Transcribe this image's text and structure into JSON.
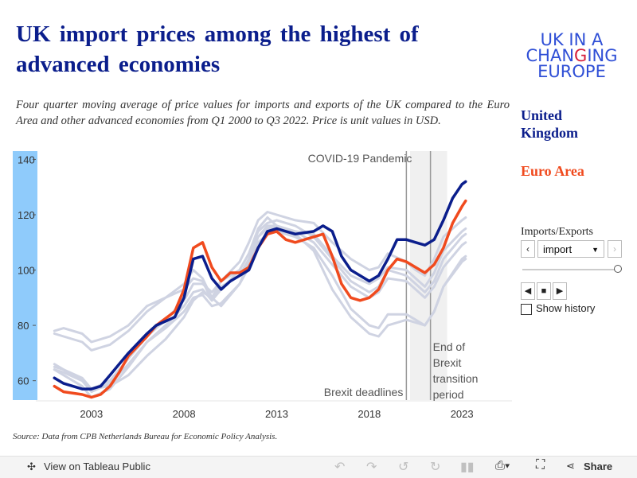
{
  "header": {
    "title": "UK import prices among the highest of advanced economies",
    "subtitle": "Four quarter moving average of price values for imports and exports of the UK compared to the Euro Area and other advanced economies from Q1 2000 to Q3 2022. Price is unit values in USD.",
    "logo": {
      "line1": "UK IN A",
      "line2a": "CHAN",
      "line2b": "G",
      "line2c": "ING",
      "line3": "EUROPE"
    }
  },
  "legend": {
    "uk": "United Kingdom",
    "ea": "Euro  Area"
  },
  "controls": {
    "filter_label": "Imports/Exports",
    "selected": "import",
    "prev_glyph": "‹",
    "next_glyph": "›",
    "show_history": "Show history",
    "playback": {
      "back": "◀",
      "stop": "■",
      "forward": "▶"
    }
  },
  "source": "Source:  Data from CPB Netherlands Bureau for Economic Policy Analysis.",
  "toolbar": {
    "view_label": "View on Tableau Public",
    "share_label": "Share"
  },
  "colors": {
    "uk": "#0b1e8c",
    "ea": "#f04a1e",
    "others": "#cfd3e2",
    "band": "#8fcbfb"
  },
  "chart_data": {
    "type": "line",
    "title": "UK import prices among the highest of advanced economies",
    "xlabel": "",
    "ylabel": "",
    "xlim": [
      2000.0,
      2025.7
    ],
    "ylim": [
      53,
      143
    ],
    "x_ticks": [
      "2003",
      "2008",
      "2013",
      "2018",
      "2023"
    ],
    "y_ticks": [
      "60",
      "80",
      "100",
      "120",
      "140"
    ],
    "grid": false,
    "annotations": {
      "covid": "COVID-19 Pandemic",
      "brexit_deadlines": "Brexit deadlines",
      "transition": [
        "End of",
        "Brexit",
        "transition",
        "period"
      ]
    },
    "events": {
      "covid_band": [
        2020.2,
        2022.2
      ],
      "brexit_line": 2020.0,
      "transition_line": 2021.3
    },
    "series": [
      {
        "name": "United Kingdom",
        "role": "uk",
        "points": [
          [
            2001.0,
            61
          ],
          [
            2001.5,
            59
          ],
          [
            2002.5,
            57
          ],
          [
            2003.0,
            57
          ],
          [
            2003.5,
            58
          ],
          [
            2004.0,
            62
          ],
          [
            2004.5,
            66
          ],
          [
            2005.0,
            70
          ],
          [
            2006.0,
            77
          ],
          [
            2006.5,
            80
          ],
          [
            2007.5,
            83
          ],
          [
            2008.0,
            90
          ],
          [
            2008.5,
            104
          ],
          [
            2009.0,
            105
          ],
          [
            2009.5,
            97
          ],
          [
            2010.0,
            93
          ],
          [
            2010.5,
            96
          ],
          [
            2011.0,
            98
          ],
          [
            2011.5,
            100
          ],
          [
            2012.0,
            108
          ],
          [
            2012.5,
            114
          ],
          [
            2013.0,
            115
          ],
          [
            2013.5,
            114
          ],
          [
            2014.0,
            113
          ],
          [
            2015.0,
            114
          ],
          [
            2015.5,
            116
          ],
          [
            2016.0,
            114
          ],
          [
            2016.5,
            105
          ],
          [
            2017.0,
            100
          ],
          [
            2017.5,
            98
          ],
          [
            2018.0,
            96
          ],
          [
            2018.5,
            98
          ],
          [
            2019.0,
            104
          ],
          [
            2019.5,
            111
          ],
          [
            2020.0,
            111
          ],
          [
            2020.5,
            110
          ],
          [
            2021.0,
            109
          ],
          [
            2021.5,
            111
          ],
          [
            2022.0,
            118
          ],
          [
            2022.5,
            126
          ],
          [
            2023.0,
            131
          ],
          [
            2023.2,
            132
          ]
        ]
      },
      {
        "name": "Euro Area",
        "role": "ea",
        "points": [
          [
            2001.0,
            58
          ],
          [
            2001.5,
            56
          ],
          [
            2002.5,
            55
          ],
          [
            2003.0,
            54
          ],
          [
            2003.5,
            55
          ],
          [
            2004.0,
            58
          ],
          [
            2004.5,
            63
          ],
          [
            2005.0,
            69
          ],
          [
            2006.0,
            76
          ],
          [
            2006.5,
            80
          ],
          [
            2007.5,
            85
          ],
          [
            2008.0,
            93
          ],
          [
            2008.5,
            108
          ],
          [
            2009.0,
            110
          ],
          [
            2009.5,
            101
          ],
          [
            2010.0,
            96
          ],
          [
            2010.5,
            99
          ],
          [
            2011.0,
            99
          ],
          [
            2011.5,
            101
          ],
          [
            2012.0,
            108
          ],
          [
            2012.5,
            113
          ],
          [
            2013.0,
            114
          ],
          [
            2013.5,
            111
          ],
          [
            2014.0,
            110
          ],
          [
            2015.0,
            112
          ],
          [
            2015.5,
            113
          ],
          [
            2016.0,
            105
          ],
          [
            2016.5,
            95
          ],
          [
            2017.0,
            90
          ],
          [
            2017.5,
            89
          ],
          [
            2018.0,
            90
          ],
          [
            2018.5,
            93
          ],
          [
            2019.0,
            100
          ],
          [
            2019.5,
            104
          ],
          [
            2020.0,
            103
          ],
          [
            2020.5,
            101
          ],
          [
            2021.0,
            99
          ],
          [
            2021.5,
            102
          ],
          [
            2022.0,
            108
          ],
          [
            2022.5,
            117
          ],
          [
            2023.0,
            123
          ],
          [
            2023.2,
            125
          ]
        ]
      },
      {
        "role": "other",
        "points": [
          [
            2001.0,
            78
          ],
          [
            2001.5,
            79
          ],
          [
            2002.5,
            77
          ],
          [
            2003.0,
            74
          ],
          [
            2004.0,
            76
          ],
          [
            2005.0,
            80
          ],
          [
            2006.0,
            87
          ],
          [
            2007.0,
            90
          ],
          [
            2008.0,
            95
          ],
          [
            2008.5,
            100
          ],
          [
            2009.0,
            97
          ],
          [
            2009.5,
            90
          ],
          [
            2010.0,
            96
          ],
          [
            2011.0,
            103
          ],
          [
            2011.5,
            110
          ],
          [
            2012.0,
            118
          ],
          [
            2012.5,
            121
          ],
          [
            2013.0,
            120
          ],
          [
            2014.0,
            118
          ],
          [
            2015.0,
            117
          ],
          [
            2016.0,
            110
          ],
          [
            2017.0,
            104
          ],
          [
            2018.0,
            100
          ],
          [
            2018.5,
            101
          ],
          [
            2019.0,
            106
          ],
          [
            2020.0,
            103
          ],
          [
            2020.5,
            100
          ],
          [
            2021.0,
            98
          ],
          [
            2021.5,
            104
          ],
          [
            2022.0,
            112
          ],
          [
            2023.0,
            118
          ],
          [
            2023.2,
            119
          ]
        ]
      },
      {
        "role": "other",
        "points": [
          [
            2001.0,
            77
          ],
          [
            2001.5,
            76
          ],
          [
            2002.5,
            74
          ],
          [
            2003.0,
            71
          ],
          [
            2004.0,
            73
          ],
          [
            2005.0,
            78
          ],
          [
            2006.0,
            85
          ],
          [
            2007.0,
            90
          ],
          [
            2008.0,
            93
          ],
          [
            2008.5,
            97
          ],
          [
            2009.0,
            96
          ],
          [
            2009.5,
            89
          ],
          [
            2010.0,
            93
          ],
          [
            2011.0,
            100
          ],
          [
            2011.5,
            106
          ],
          [
            2012.0,
            115
          ],
          [
            2012.5,
            119
          ],
          [
            2013.0,
            116
          ],
          [
            2014.0,
            114
          ],
          [
            2015.0,
            113
          ],
          [
            2016.0,
            105
          ],
          [
            2017.0,
            98
          ],
          [
            2018.0,
            95
          ],
          [
            2018.5,
            97
          ],
          [
            2019.0,
            101
          ],
          [
            2020.0,
            100
          ],
          [
            2020.5,
            97
          ],
          [
            2021.0,
            94
          ],
          [
            2021.5,
            99
          ],
          [
            2022.0,
            107
          ],
          [
            2023.0,
            114
          ],
          [
            2023.2,
            115
          ]
        ]
      },
      {
        "role": "other",
        "points": [
          [
            2001.0,
            65
          ],
          [
            2001.5,
            64
          ],
          [
            2002.5,
            61
          ],
          [
            2003.0,
            57
          ],
          [
            2004.0,
            60
          ],
          [
            2005.0,
            68
          ],
          [
            2006.0,
            76
          ],
          [
            2007.0,
            82
          ],
          [
            2008.0,
            89
          ],
          [
            2008.5,
            95
          ],
          [
            2009.0,
            95
          ],
          [
            2009.5,
            92
          ],
          [
            2010.0,
            96
          ],
          [
            2011.0,
            100
          ],
          [
            2011.5,
            106
          ],
          [
            2012.0,
            114
          ],
          [
            2012.5,
            117
          ],
          [
            2013.0,
            118
          ],
          [
            2014.0,
            116
          ],
          [
            2015.0,
            112
          ],
          [
            2016.0,
            104
          ],
          [
            2017.0,
            96
          ],
          [
            2018.0,
            92
          ],
          [
            2018.5,
            94
          ],
          [
            2019.0,
            100
          ],
          [
            2020.0,
            98
          ],
          [
            2020.5,
            95
          ],
          [
            2021.0,
            92
          ],
          [
            2021.5,
            96
          ],
          [
            2022.0,
            104
          ],
          [
            2023.0,
            112
          ],
          [
            2023.2,
            113
          ]
        ]
      },
      {
        "role": "other",
        "points": [
          [
            2001.0,
            64
          ],
          [
            2001.5,
            62
          ],
          [
            2002.5,
            58
          ],
          [
            2003.0,
            54
          ],
          [
            2004.0,
            57
          ],
          [
            2005.0,
            65
          ],
          [
            2006.0,
            74
          ],
          [
            2007.0,
            80
          ],
          [
            2008.0,
            87
          ],
          [
            2008.5,
            92
          ],
          [
            2009.0,
            93
          ],
          [
            2009.5,
            89
          ],
          [
            2010.0,
            94
          ],
          [
            2011.0,
            98
          ],
          [
            2011.5,
            104
          ],
          [
            2012.0,
            112
          ],
          [
            2012.5,
            115
          ],
          [
            2013.0,
            116
          ],
          [
            2014.0,
            114
          ],
          [
            2015.0,
            110
          ],
          [
            2016.0,
            102
          ],
          [
            2017.0,
            94
          ],
          [
            2018.0,
            90
          ],
          [
            2018.5,
            92
          ],
          [
            2019.0,
            97
          ],
          [
            2020.0,
            96
          ],
          [
            2020.5,
            93
          ],
          [
            2021.0,
            90
          ],
          [
            2021.5,
            94
          ],
          [
            2022.0,
            101
          ],
          [
            2023.0,
            109
          ],
          [
            2023.2,
            110
          ]
        ]
      },
      {
        "role": "other",
        "points": [
          [
            2001.0,
            66
          ],
          [
            2001.5,
            64
          ],
          [
            2002.5,
            60
          ],
          [
            2003.0,
            56
          ],
          [
            2004.0,
            59
          ],
          [
            2005.0,
            66
          ],
          [
            2006.0,
            74
          ],
          [
            2007.0,
            79
          ],
          [
            2008.0,
            85
          ],
          [
            2008.5,
            90
          ],
          [
            2009.0,
            91
          ],
          [
            2009.5,
            87
          ],
          [
            2010.0,
            88
          ],
          [
            2011.0,
            95
          ],
          [
            2011.5,
            101
          ],
          [
            2012.0,
            110
          ],
          [
            2012.5,
            113
          ],
          [
            2013.0,
            114
          ],
          [
            2014.0,
            112
          ],
          [
            2015.0,
            108
          ],
          [
            2016.0,
            98
          ],
          [
            2017.0,
            86
          ],
          [
            2018.0,
            80
          ],
          [
            2018.5,
            79
          ],
          [
            2019.0,
            84
          ],
          [
            2020.0,
            84
          ],
          [
            2020.5,
            82
          ],
          [
            2021.0,
            80
          ],
          [
            2021.5,
            85
          ],
          [
            2022.0,
            94
          ],
          [
            2023.0,
            103
          ],
          [
            2023.2,
            104
          ]
        ]
      },
      {
        "role": "other",
        "points": [
          [
            2001.0,
            64
          ],
          [
            2001.5,
            63
          ],
          [
            2002.5,
            60
          ],
          [
            2003.0,
            57
          ],
          [
            2004.0,
            58
          ],
          [
            2005.0,
            62
          ],
          [
            2006.0,
            69
          ],
          [
            2007.0,
            75
          ],
          [
            2008.0,
            83
          ],
          [
            2008.5,
            89
          ],
          [
            2009.0,
            92
          ],
          [
            2009.5,
            90
          ],
          [
            2010.0,
            87
          ],
          [
            2011.0,
            95
          ],
          [
            2011.5,
            103
          ],
          [
            2012.0,
            112
          ],
          [
            2012.5,
            116
          ],
          [
            2013.0,
            116
          ],
          [
            2014.0,
            113
          ],
          [
            2015.0,
            107
          ],
          [
            2016.0,
            93
          ],
          [
            2017.0,
            83
          ],
          [
            2018.0,
            77
          ],
          [
            2018.5,
            76
          ],
          [
            2019.0,
            80
          ],
          [
            2020.0,
            82
          ],
          [
            2020.5,
            81
          ],
          [
            2021.0,
            80
          ],
          [
            2021.5,
            85
          ],
          [
            2022.0,
            94
          ],
          [
            2023.0,
            104
          ],
          [
            2023.2,
            105
          ]
        ]
      }
    ]
  }
}
